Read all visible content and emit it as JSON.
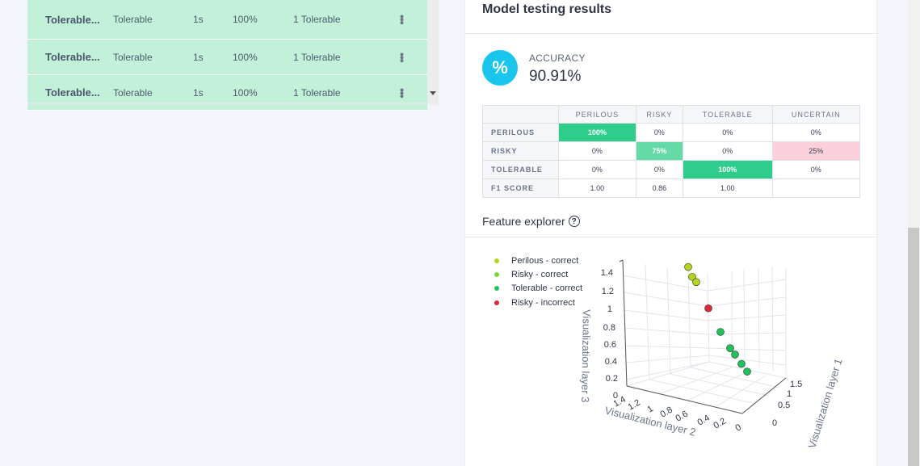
{
  "left_table": {
    "rows": [
      {
        "name": "Tolerable...",
        "label": "Tolerable",
        "length": "1s",
        "accuracy": "100%",
        "result": "1 Tolerable"
      },
      {
        "name": "Tolerable...",
        "label": "Tolerable",
        "length": "1s",
        "accuracy": "100%",
        "result": "1 Tolerable"
      },
      {
        "name": "Tolerable...",
        "label": "Tolerable",
        "length": "1s",
        "accuracy": "100%",
        "result": "1 Tolerable"
      }
    ]
  },
  "results": {
    "title": "Model testing results",
    "accuracy_icon": "%",
    "accuracy_label": "ACCURACY",
    "accuracy_value": "90.91%"
  },
  "confusion_matrix": {
    "columns": [
      "PERILOUS",
      "RISKY",
      "TOLERABLE",
      "UNCERTAIN"
    ],
    "rows": [
      {
        "label": "PERILOUS",
        "cells": [
          "100%",
          "0%",
          "0%",
          "0%"
        ]
      },
      {
        "label": "RISKY",
        "cells": [
          "0%",
          "75%",
          "0%",
          "25%"
        ]
      },
      {
        "label": "TOLERABLE",
        "cells": [
          "0%",
          "0%",
          "100%",
          "0%"
        ]
      },
      {
        "label": "F1 SCORE",
        "cells": [
          "1.00",
          "0.86",
          "1.00",
          ""
        ]
      }
    ]
  },
  "feature_explorer": {
    "title": "Feature explorer",
    "help_icon": "?",
    "legend": [
      {
        "label": "Perilous - correct",
        "color": "#b5d41c"
      },
      {
        "label": "Risky - correct",
        "color": "#7ad43a"
      },
      {
        "label": "Tolerable - correct",
        "color": "#1ec15a"
      },
      {
        "label": "Risky - incorrect",
        "color": "#dc2a3a"
      }
    ]
  },
  "chart_data": {
    "type": "scatter",
    "title": "Feature explorer",
    "axes": {
      "z_label": "Visualization layer 3",
      "z_ticks": [
        "0",
        "0.2",
        "0.4",
        "0.6",
        "0.8",
        "1",
        "1.2",
        "1.4"
      ],
      "y_label": "Visualization layer 2",
      "y_ticks": [
        "1.4",
        "1.2",
        "1",
        "0.8",
        "0.6",
        "0.4",
        "0.2",
        "0"
      ],
      "x_label": "Visualization layer 1",
      "x_ticks": [
        "0",
        "0.5",
        "1",
        "1.5"
      ]
    },
    "series": [
      {
        "name": "Perilous - correct",
        "color": "#b5d41c",
        "points_z": [
          1.35,
          1.22,
          1.16
        ]
      },
      {
        "name": "Risky - incorrect",
        "color": "#dc2a3a",
        "points_z": [
          0.82
        ]
      },
      {
        "name": "Tolerable - correct",
        "color": "#1ec15a",
        "points_z": [
          0.52,
          0.32,
          0.25,
          0.14,
          0.05
        ]
      }
    ]
  }
}
